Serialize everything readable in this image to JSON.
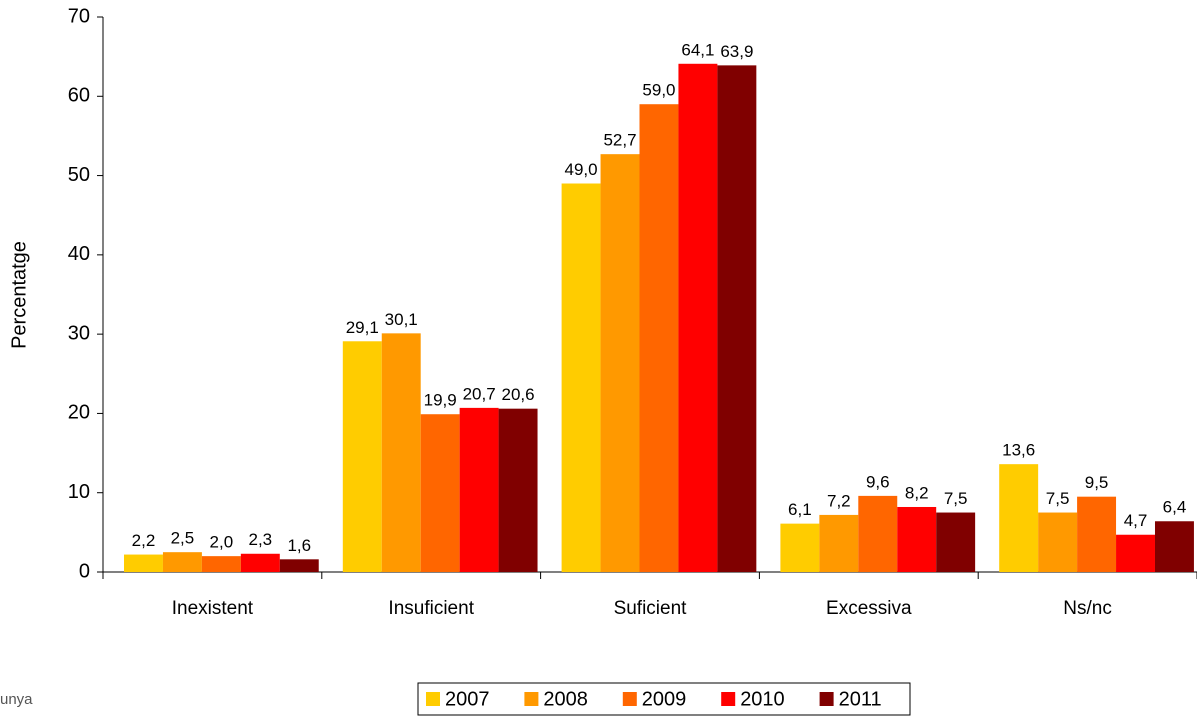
{
  "chart_data": {
    "type": "bar",
    "y_label": "Percentatge",
    "categories": [
      "Inexistent",
      "Insuficient",
      "Suficient",
      "Excessiva",
      "Ns/nc"
    ],
    "series": [
      {
        "name": "2007",
        "color": "#FFCC00",
        "values": [
          2.2,
          29.1,
          49.0,
          6.1,
          13.6
        ],
        "value_labels": [
          "2,2",
          "29,1",
          "49,0",
          "6,1",
          "13,6"
        ]
      },
      {
        "name": "2008",
        "color": "#FF9900",
        "values": [
          2.5,
          30.1,
          52.7,
          7.2,
          7.5
        ],
        "value_labels": [
          "2,5",
          "30,1",
          "52,7",
          "7,2",
          "7,5"
        ]
      },
      {
        "name": "2009",
        "color": "#FF6600",
        "values": [
          2.0,
          19.9,
          59.0,
          9.6,
          9.5
        ],
        "value_labels": [
          "2,0",
          "19,9",
          "59,0",
          "9,6",
          "9,5"
        ]
      },
      {
        "name": "2010",
        "color": "#FF0000",
        "values": [
          2.3,
          20.7,
          64.1,
          8.2,
          4.7
        ],
        "value_labels": [
          "2,3",
          "20,7",
          "64,1",
          "8,2",
          "4,7"
        ]
      },
      {
        "name": "2011",
        "color": "#800000",
        "values": [
          1.6,
          20.6,
          63.9,
          7.5,
          6.4
        ],
        "value_labels": [
          "1,6",
          "20,6",
          "63,9",
          "7,5",
          "6,4"
        ]
      }
    ],
    "ylim": [
      0,
      70
    ],
    "yticks": [
      0,
      10,
      20,
      30,
      40,
      50,
      60,
      70
    ],
    "legend": "bottom",
    "source": "unya"
  }
}
